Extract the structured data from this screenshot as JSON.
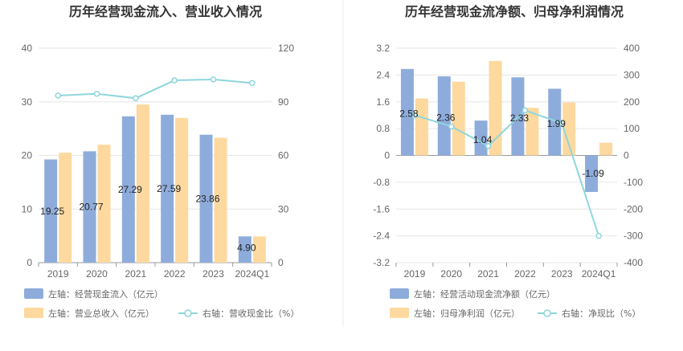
{
  "colors": {
    "bar_primary": "#8eacdb",
    "bar_secondary": "#fdd99f",
    "line": "#8fd6dc",
    "grid": "#e6e6e6",
    "axis": "#999999",
    "divider": "#eeeeee"
  },
  "chart_data": [
    {
      "type": "bar",
      "title": "历年经营现金流入、营业收入情况",
      "categories": [
        "2019",
        "2020",
        "2021",
        "2022",
        "2023",
        "2024Q1"
      ],
      "series": [
        {
          "name": "左轴：经营现金流入（亿元）",
          "axis": "left",
          "kind": "bar",
          "values": [
            19.25,
            20.77,
            27.29,
            27.59,
            23.86,
            4.9
          ],
          "labels": [
            "19.25",
            "20.77",
            "27.29",
            "27.59",
            "23.86",
            "4.90"
          ]
        },
        {
          "name": "左轴：营业总收入（亿元）",
          "axis": "left",
          "kind": "bar",
          "values": [
            20.5,
            22.0,
            29.5,
            27.0,
            23.3,
            4.9
          ]
        },
        {
          "name": "右轴：营收现金比（%）",
          "axis": "right",
          "kind": "line",
          "values": [
            93.5,
            94.5,
            92.0,
            102.0,
            102.5,
            100.5
          ]
        }
      ],
      "left_axis": {
        "min": 0,
        "max": 40,
        "ticks": [
          "0",
          "10",
          "20",
          "30",
          "40"
        ]
      },
      "right_axis": {
        "min": 0,
        "max": 120,
        "ticks": [
          "0",
          "30",
          "60",
          "90",
          "120"
        ]
      },
      "legend_placement": "bottom-left",
      "grid": true
    },
    {
      "type": "bar",
      "title": "历年经营现金流净额、归母净利润情况",
      "categories": [
        "2019",
        "2020",
        "2021",
        "2022",
        "2023",
        "2024Q1"
      ],
      "series": [
        {
          "name": "左轴：经营活动现金流净额（亿元）",
          "axis": "left",
          "kind": "bar",
          "values": [
            2.58,
            2.36,
            1.04,
            2.33,
            1.99,
            -1.09
          ],
          "labels": [
            "2.58",
            "2.36",
            "1.04",
            "2.33",
            "1.99",
            "-1.09"
          ]
        },
        {
          "name": "左轴：归母净利润（亿元）",
          "axis": "left",
          "kind": "bar",
          "values": [
            1.7,
            2.2,
            2.82,
            1.42,
            1.58,
            0.38
          ]
        },
        {
          "name": "右轴：净现比（%）",
          "axis": "right",
          "kind": "line",
          "values": [
            150,
            108,
            35,
            168,
            120,
            -300
          ]
        }
      ],
      "left_axis": {
        "min": -3.2,
        "max": 3.2,
        "ticks": [
          "-3.2",
          "-2.4",
          "-1.6",
          "-0.8",
          "0",
          "0.8",
          "1.6",
          "2.4",
          "3.2"
        ]
      },
      "right_axis": {
        "min": -400,
        "max": 400,
        "ticks": [
          "-400",
          "-300",
          "-200",
          "-100",
          "0",
          "100",
          "200",
          "300",
          "400"
        ]
      },
      "legend_placement": "bottom-left",
      "grid": true
    }
  ]
}
